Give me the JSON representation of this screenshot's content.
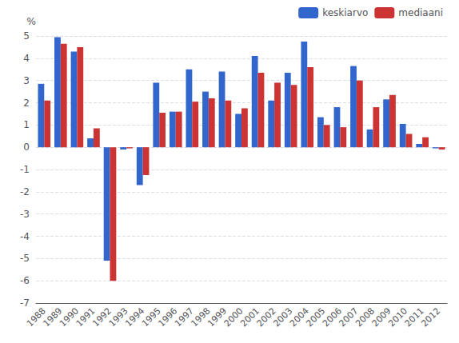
{
  "chart_data": {
    "type": "bar",
    "ylabel": "%",
    "categories": [
      "1988",
      "1989",
      "1990",
      "1991",
      "1992",
      "1993",
      "1994",
      "1995",
      "1996",
      "1997",
      "1998",
      "1999",
      "2000",
      "2001",
      "2002",
      "2003",
      "2004",
      "2005",
      "2006",
      "2007",
      "2008",
      "2009",
      "2010",
      "2011",
      "2012"
    ],
    "series": [
      {
        "name": "keskiarvo",
        "color": "#3366CC",
        "values": [
          2.85,
          4.95,
          4.3,
          0.4,
          -5.1,
          -0.1,
          -1.7,
          2.9,
          1.6,
          3.5,
          2.5,
          3.4,
          1.5,
          4.1,
          2.1,
          3.35,
          4.75,
          1.35,
          1.8,
          3.65,
          0.8,
          2.15,
          1.05,
          0.15,
          -0.05
        ]
      },
      {
        "name": "mediaani",
        "color": "#CC3333",
        "values": [
          2.1,
          4.65,
          4.5,
          0.85,
          -6.0,
          -0.05,
          -1.25,
          1.55,
          1.6,
          2.05,
          2.2,
          2.1,
          1.75,
          3.35,
          2.9,
          2.8,
          3.6,
          1.0,
          0.9,
          3.0,
          1.8,
          2.35,
          0.6,
          0.45,
          -0.1
        ]
      }
    ],
    "ylim": [
      -7,
      5
    ],
    "yticks": [
      -7,
      -6,
      -5,
      -4,
      -3,
      -2,
      -1,
      0,
      1,
      2,
      3,
      4,
      5
    ],
    "grid": true,
    "legend": "upper right"
  }
}
